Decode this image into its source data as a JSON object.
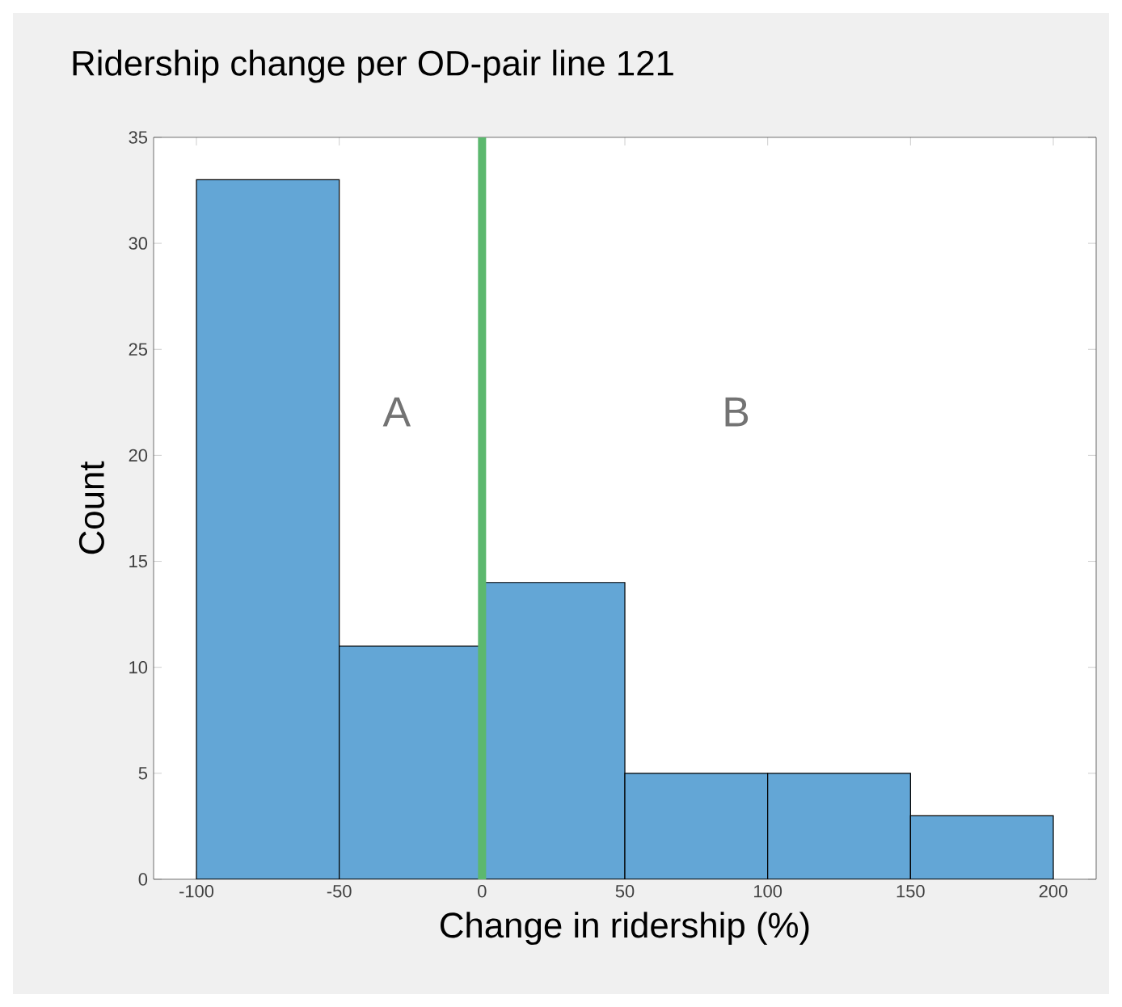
{
  "chart_data": {
    "type": "histogram",
    "title": "Ridership change per OD-pair line 121",
    "xlabel": "Change in ridership (%)",
    "ylabel": "Count",
    "bins": [
      -100,
      -50,
      0,
      50,
      100,
      150,
      200
    ],
    "values": [
      33,
      11,
      14,
      5,
      5,
      3
    ],
    "color": "#63a6d6",
    "xlim": [
      -115,
      215
    ],
    "ylim": [
      0,
      35
    ],
    "xticks": [
      -100,
      -50,
      0,
      50,
      100,
      150,
      200
    ],
    "yticks": [
      0,
      5,
      10,
      15,
      20,
      25,
      30,
      35
    ],
    "ref_lines": [
      {
        "axis": "x",
        "value": 0,
        "color": "#5cb86e"
      }
    ],
    "annotations": [
      "A",
      "B"
    ],
    "grid": false
  }
}
